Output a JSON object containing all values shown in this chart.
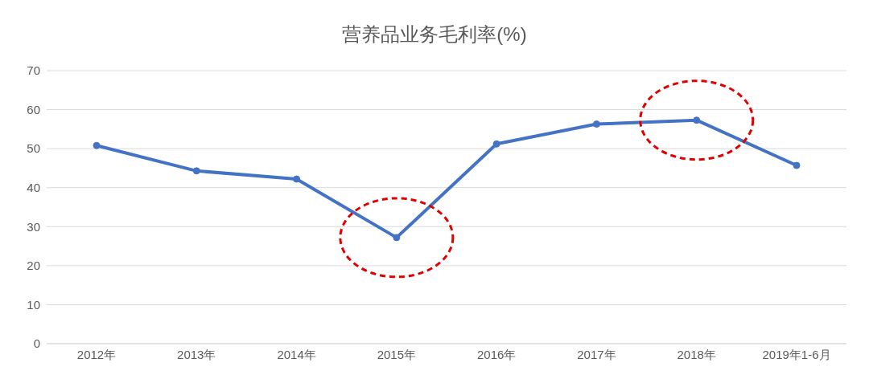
{
  "chart_data": {
    "type": "line",
    "title": "营养品业务毛利率(%)",
    "categories": [
      "2012年",
      "2013年",
      "2014年",
      "2015年",
      "2016年",
      "2017年",
      "2018年",
      "2019年1-6月"
    ],
    "series": [
      {
        "color": "#4472c4",
        "values": [
          50.8,
          44.3,
          42.2,
          27.2,
          51.2,
          56.3,
          57.3,
          45.7
        ]
      }
    ],
    "ylim": [
      0,
      70
    ],
    "yticks": [
      0,
      10,
      20,
      30,
      40,
      50,
      60,
      70
    ],
    "grid": "y",
    "marker": "circle",
    "line_style": "solid",
    "legend": false
  }
}
